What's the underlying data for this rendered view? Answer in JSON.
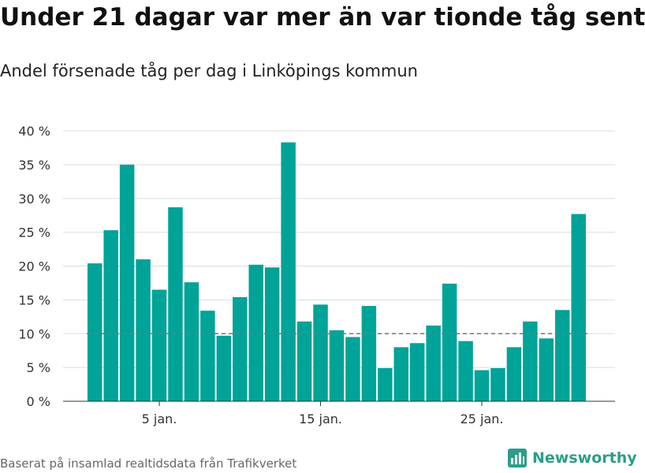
{
  "title": "Under 21 dagar var mer än var tionde tåg sent",
  "subtitle": "Andel försenade tåg per dag i Linköpings kommun",
  "source": "Baserat på insamlad realtidsdata från Trafikverket",
  "brand": {
    "name": "Newsworthy",
    "color": "#2b9e89"
  },
  "colors": {
    "bar": "#00a398",
    "reference_line": "#777777",
    "grid": "#dddddd"
  },
  "chart_data": {
    "type": "bar",
    "title": "Under 21 dagar var mer än var tionde tåg sent",
    "subtitle": "Andel försenade tåg per dag i Linköpings kommun",
    "xlabel": "",
    "ylabel": "",
    "ylim": [
      0,
      40
    ],
    "yticks": [
      0,
      5,
      10,
      15,
      20,
      25,
      30,
      35,
      40
    ],
    "ytick_labels": [
      "0 %",
      "5 %",
      "10 %",
      "15 %",
      "20 %",
      "25 %",
      "30 %",
      "35 %",
      "40 %"
    ],
    "x_day_start": 1,
    "xticks": [
      5,
      15,
      25
    ],
    "xtick_labels": [
      "5 jan.",
      "15 jan.",
      "25 jan."
    ],
    "grid": true,
    "reference_line": 10,
    "series": [
      {
        "values": [
          20.4,
          25.3,
          35.0,
          21.0,
          16.5,
          28.7,
          17.6,
          13.4,
          9.7,
          15.4,
          20.2,
          19.8,
          38.3,
          11.8,
          14.3,
          10.5,
          9.5,
          14.1,
          4.9,
          8.0,
          8.6,
          11.2,
          17.4,
          8.9,
          4.6,
          4.9,
          8.0,
          11.8,
          9.3,
          13.5,
          27.7
        ]
      }
    ]
  }
}
